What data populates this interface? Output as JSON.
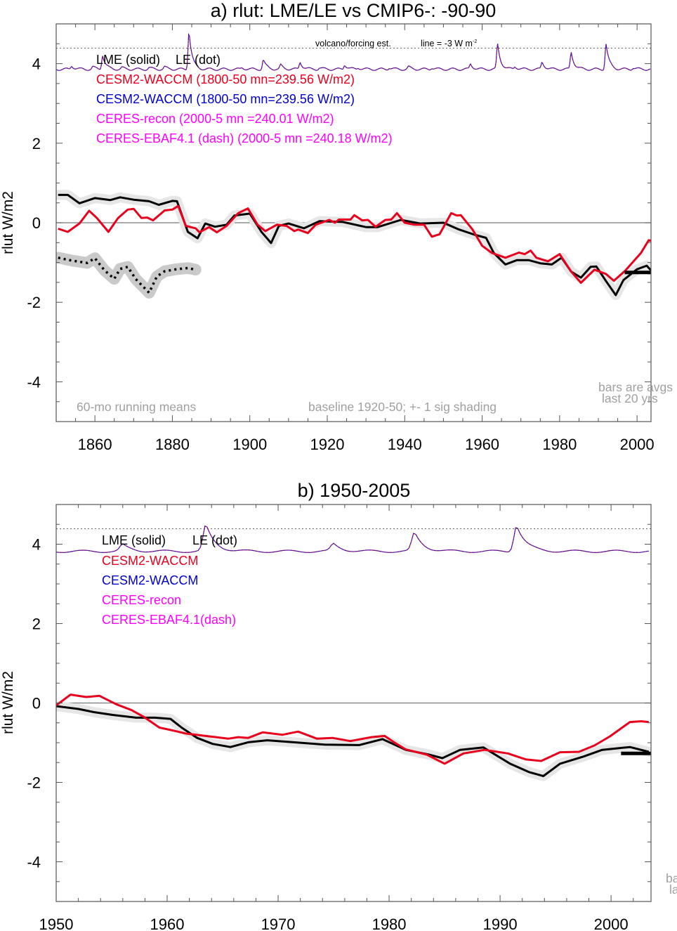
{
  "chart_data": [
    {
      "type": "line",
      "title": "a) rlut: LME/LE vs CMIP6-: -90-90",
      "xlabel": "",
      "ylabel": "rlut W/m2",
      "xlim": [
        1850,
        2003.6
      ],
      "ylim": [
        -5,
        5
      ],
      "xticks": [
        1860,
        1880,
        1900,
        1920,
        1940,
        1960,
        1980,
        2000
      ],
      "yticks": [
        4,
        2,
        0,
        -2,
        -4
      ],
      "ytick_labels": [
        "4",
        "2",
        "0",
        "-2",
        "-4"
      ],
      "zero_line": 0,
      "legend": {
        "placement": "top-left",
        "header": [
          "LME (solid)",
          "LE (dot)"
        ],
        "entries": [
          {
            "label": "CESM2-WACCM (1800-50 mn=239.56 W/m2)",
            "color": "#e8001c"
          },
          {
            "label": "CESM2-WACCM (1800-50 mn=239.56 W/m2)",
            "color": "#0000d0"
          },
          {
            "label": "CERES-recon (2000-5 mn =240.01 W/m2)",
            "color": "#ff00ff"
          },
          {
            "label": "CERES-EBAF4.1 (dash) (2000-5 mn =240.18 W/m2)",
            "color": "#ff00ff"
          }
        ]
      },
      "annotations": {
        "volcano": "volcano/forcing est.",
        "line_ref": "line = -3 W m",
        "line_ref_sup": "-2",
        "running": "60-mo running means",
        "baseline": "baseline 1920-50; +- 1 sig shading",
        "bars1": "bars are avgs",
        "bars2": "last 20 yrs"
      },
      "volcano": {
        "reference_line": 4.39,
        "baseline": 3.86,
        "peaks": [
          [
            1854,
            3.95
          ],
          [
            1859.5,
            3.92
          ],
          [
            1862,
            4.22
          ],
          [
            1867,
            3.9
          ],
          [
            1874,
            3.9
          ],
          [
            1878,
            3.92
          ],
          [
            1884.3,
            4.84
          ],
          [
            1898,
            3.9
          ],
          [
            1903.5,
            4.1
          ],
          [
            1908,
            3.96
          ],
          [
            1913,
            4.04
          ],
          [
            1918,
            3.9
          ],
          [
            1924.5,
            3.98
          ],
          [
            1928,
            3.9
          ],
          [
            1936,
            3.9
          ],
          [
            1941,
            3.92
          ],
          [
            1947,
            3.9
          ],
          [
            1957,
            3.99
          ],
          [
            1964,
            4.48
          ],
          [
            1968.5,
            3.93
          ],
          [
            1975.5,
            4.04
          ],
          [
            1983,
            4.29
          ],
          [
            1992,
            4.5
          ],
          [
            1999,
            3.9
          ]
        ]
      },
      "series": [
        {
          "name": "LME (solid)",
          "color": "#000000",
          "style": "solid",
          "shading_sigma": 0.1,
          "points": [
            [
              1850.5,
              0.7
            ],
            [
              1853,
              0.7
            ],
            [
              1856,
              0.49
            ],
            [
              1860,
              0.62
            ],
            [
              1864,
              0.57
            ],
            [
              1866.5,
              0.64
            ],
            [
              1870,
              0.58
            ],
            [
              1874,
              0.54
            ],
            [
              1876.5,
              0.45
            ],
            [
              1880,
              0.55
            ],
            [
              1881.2,
              0.54
            ],
            [
              1884,
              -0.23
            ],
            [
              1886.5,
              -0.39
            ],
            [
              1888.5,
              -0.02
            ],
            [
              1891,
              -0.1
            ],
            [
              1894,
              -0.05
            ],
            [
              1896,
              0.18
            ],
            [
              1900,
              0.23
            ],
            [
              1903,
              -0.23
            ],
            [
              1905.5,
              -0.51
            ],
            [
              1907.5,
              -0.08
            ],
            [
              1910,
              -0.02
            ],
            [
              1914,
              -0.14
            ],
            [
              1918,
              0.04
            ],
            [
              1924,
              0.02
            ],
            [
              1930,
              -0.11
            ],
            [
              1933,
              -0.11
            ],
            [
              1939,
              0.07
            ],
            [
              1944,
              -0.02
            ],
            [
              1950,
              0.0
            ],
            [
              1954,
              -0.17
            ],
            [
              1958,
              -0.3
            ],
            [
              1961,
              -0.38
            ],
            [
              1963,
              -0.76
            ],
            [
              1966,
              -1.05
            ],
            [
              1969,
              -0.94
            ],
            [
              1972,
              -0.94
            ],
            [
              1975,
              -1.02
            ],
            [
              1978,
              -1.05
            ],
            [
              1980.5,
              -0.88
            ],
            [
              1983,
              -1.23
            ],
            [
              1985.5,
              -1.38
            ],
            [
              1988,
              -1.11
            ],
            [
              1989.5,
              -1.1
            ],
            [
              1992,
              -1.47
            ],
            [
              1994.5,
              -1.82
            ],
            [
              1996.5,
              -1.44
            ],
            [
              2000,
              -1.17
            ],
            [
              2002.5,
              -1.08
            ],
            [
              2003.6,
              -1.2
            ]
          ]
        },
        {
          "name": "CESM2-WACCM",
          "color": "#e8001c",
          "style": "solid",
          "points": [
            [
              1850.5,
              -0.15
            ],
            [
              1853,
              -0.23
            ],
            [
              1856,
              -0.02
            ],
            [
              1858.5,
              0.3
            ],
            [
              1860.5,
              0.12
            ],
            [
              1863.5,
              -0.23
            ],
            [
              1866,
              0.12
            ],
            [
              1868.5,
              0.33
            ],
            [
              1870,
              0.35
            ],
            [
              1872,
              0.12
            ],
            [
              1873.5,
              0.13
            ],
            [
              1875,
              0.06
            ],
            [
              1878,
              0.31
            ],
            [
              1880,
              0.33
            ],
            [
              1881.5,
              0.42
            ],
            [
              1883.5,
              -0.08
            ],
            [
              1886,
              -0.14
            ],
            [
              1887,
              -0.24
            ],
            [
              1889.5,
              -0.11
            ],
            [
              1891.5,
              -0.24
            ],
            [
              1894,
              -0.08
            ],
            [
              1897,
              0.24
            ],
            [
              1899.5,
              0.36
            ],
            [
              1902,
              -0.05
            ],
            [
              1904,
              -0.21
            ],
            [
              1907,
              -0.05
            ],
            [
              1909.5,
              -0.08
            ],
            [
              1911.5,
              -0.21
            ],
            [
              1912.5,
              -0.17
            ],
            [
              1915,
              -0.26
            ],
            [
              1917,
              -0.05
            ],
            [
              1920.5,
              0.07
            ],
            [
              1922,
              0.0
            ],
            [
              1923,
              0.08
            ],
            [
              1926,
              0.08
            ],
            [
              1927,
              0.19
            ],
            [
              1929,
              0.06
            ],
            [
              1930.5,
              0.07
            ],
            [
              1932.5,
              -0.1
            ],
            [
              1935,
              0.07
            ],
            [
              1936.5,
              0.08
            ],
            [
              1938,
              0.24
            ],
            [
              1940,
              0.0
            ],
            [
              1942.5,
              -0.05
            ],
            [
              1945,
              -0.05
            ],
            [
              1947,
              -0.35
            ],
            [
              1949,
              -0.29
            ],
            [
              1952,
              0.24
            ],
            [
              1953.5,
              0.18
            ],
            [
              1954.5,
              0.19
            ],
            [
              1957.5,
              -0.17
            ],
            [
              1960,
              -0.58
            ],
            [
              1962.5,
              -0.76
            ],
            [
              1966,
              -0.88
            ],
            [
              1969.5,
              -0.75
            ],
            [
              1971,
              -0.79
            ],
            [
              1972.5,
              -0.7
            ],
            [
              1974,
              -0.88
            ],
            [
              1977,
              -0.97
            ],
            [
              1980,
              -0.79
            ],
            [
              1983,
              -1.23
            ],
            [
              1985.5,
              -1.51
            ],
            [
              1989,
              -1.18
            ],
            [
              1992,
              -1.29
            ],
            [
              1994,
              -1.46
            ],
            [
              1997,
              -1.2
            ],
            [
              2001,
              -0.76
            ],
            [
              2003,
              -0.44
            ],
            [
              2003.6,
              -0.45
            ]
          ]
        },
        {
          "name": "LE (dot)",
          "color": "#000000",
          "style": "dot",
          "shading_sigma": 0.12,
          "points": [
            [
              1850.5,
              -0.88
            ],
            [
              1854,
              -0.95
            ],
            [
              1858,
              -1.01
            ],
            [
              1860,
              -0.89
            ],
            [
              1862.5,
              -1.2
            ],
            [
              1865,
              -1.41
            ],
            [
              1866.5,
              -1.16
            ],
            [
              1868.5,
              -1.11
            ],
            [
              1870.5,
              -1.41
            ],
            [
              1874,
              -1.76
            ],
            [
              1876,
              -1.35
            ],
            [
              1878,
              -1.22
            ],
            [
              1881,
              -1.17
            ],
            [
              1884,
              -1.14
            ],
            [
              1886,
              -1.18
            ]
          ]
        }
      ],
      "bars": [
        {
          "from": 1996.8,
          "to": 2003.6,
          "value": -1.25,
          "color": "#000000"
        }
      ]
    },
    {
      "type": "line",
      "title": "b) 1950-2005",
      "xlabel": "",
      "ylabel": "rlut W/m2",
      "xlim": [
        1950,
        2003.6
      ],
      "ylim": [
        -5,
        5
      ],
      "xticks": [
        1950,
        1960,
        1970,
        1980,
        1990,
        2000
      ],
      "yticks": [
        4,
        2,
        0,
        -2,
        -4
      ],
      "ytick_labels": [
        "4",
        "2",
        "0",
        "-2",
        "-4"
      ],
      "zero_line": 0,
      "legend": {
        "placement": "top-left",
        "header": [
          "LME (solid)",
          "LE (dot)"
        ],
        "entries": [
          {
            "label": "CESM2-WACCM",
            "color": "#e8001c"
          },
          {
            "label": "CESM2-WACCM",
            "color": "#0000d0"
          },
          {
            "label": "CERES-recon",
            "color": "#ff00ff"
          },
          {
            "label": "CERES-EBAF4.1(dash)",
            "color": "#ff00ff"
          }
        ]
      },
      "annotations": {
        "bars1": "ba",
        "bars2": "la"
      },
      "volcano": {
        "reference_line": 4.39,
        "baseline": 3.82,
        "peaks": [
          [
            1956,
            3.98
          ],
          [
            1963.5,
            4.48
          ],
          [
            1975,
            4.0
          ],
          [
            1982.3,
            4.28
          ],
          [
            1991.5,
            4.5
          ]
        ]
      },
      "series": [
        {
          "name": "LME (solid)",
          "color": "#000000",
          "style": "solid",
          "shading_sigma": 0.1,
          "points": [
            [
              1950,
              -0.08
            ],
            [
              1952,
              -0.15
            ],
            [
              1953.4,
              -0.23
            ],
            [
              1955.1,
              -0.3
            ],
            [
              1957.2,
              -0.37
            ],
            [
              1958.9,
              -0.37
            ],
            [
              1960.3,
              -0.4
            ],
            [
              1961.3,
              -0.62
            ],
            [
              1962.7,
              -0.88
            ],
            [
              1964.1,
              -1.03
            ],
            [
              1965.7,
              -1.11
            ],
            [
              1967.3,
              -0.99
            ],
            [
              1969,
              -0.94
            ],
            [
              1971.4,
              -0.99
            ],
            [
              1974.2,
              -1.05
            ],
            [
              1977.3,
              -1.06
            ],
            [
              1979.4,
              -0.91
            ],
            [
              1981.5,
              -1.18
            ],
            [
              1983.6,
              -1.3
            ],
            [
              1984.8,
              -1.39
            ],
            [
              1986.4,
              -1.18
            ],
            [
              1988.5,
              -1.12
            ],
            [
              1990.9,
              -1.53
            ],
            [
              1992.6,
              -1.74
            ],
            [
              1993.9,
              -1.84
            ],
            [
              1995.4,
              -1.53
            ],
            [
              1997.5,
              -1.35
            ],
            [
              1999.2,
              -1.18
            ],
            [
              2001.7,
              -1.11
            ],
            [
              2003.4,
              -1.23
            ]
          ]
        },
        {
          "name": "CESM2-WACCM",
          "color": "#e8001c",
          "style": "solid",
          "points": [
            [
              1950,
              -0.06
            ],
            [
              1951.3,
              0.21
            ],
            [
              1952.7,
              0.15
            ],
            [
              1953.9,
              0.18
            ],
            [
              1955.4,
              -0.03
            ],
            [
              1956.8,
              -0.18
            ],
            [
              1957.9,
              -0.35
            ],
            [
              1959.3,
              -0.62
            ],
            [
              1960.3,
              -0.68
            ],
            [
              1961.7,
              -0.77
            ],
            [
              1963.8,
              -0.84
            ],
            [
              1965.5,
              -0.9
            ],
            [
              1966.4,
              -0.86
            ],
            [
              1967.3,
              -0.88
            ],
            [
              1968.6,
              -0.74
            ],
            [
              1970.4,
              -0.8
            ],
            [
              1971.8,
              -0.72
            ],
            [
              1973.5,
              -0.9
            ],
            [
              1974.9,
              -0.88
            ],
            [
              1976.5,
              -0.96
            ],
            [
              1978.4,
              -0.86
            ],
            [
              1979.6,
              -0.83
            ],
            [
              1980.5,
              -1.0
            ],
            [
              1981.5,
              -1.17
            ],
            [
              1983.4,
              -1.3
            ],
            [
              1985,
              -1.53
            ],
            [
              1986.7,
              -1.27
            ],
            [
              1988.6,
              -1.18
            ],
            [
              1990.7,
              -1.27
            ],
            [
              1992.3,
              -1.42
            ],
            [
              1993.7,
              -1.46
            ],
            [
              1995.4,
              -1.24
            ],
            [
              1997.1,
              -1.23
            ],
            [
              1998.5,
              -1.07
            ],
            [
              1999.9,
              -0.84
            ],
            [
              2001.7,
              -0.48
            ],
            [
              2002.7,
              -0.46
            ],
            [
              2003.4,
              -0.48
            ]
          ]
        }
      ],
      "bars": [
        {
          "from": 2000.9,
          "to": 2003.6,
          "value": -1.27,
          "color": "#000000"
        }
      ]
    }
  ]
}
